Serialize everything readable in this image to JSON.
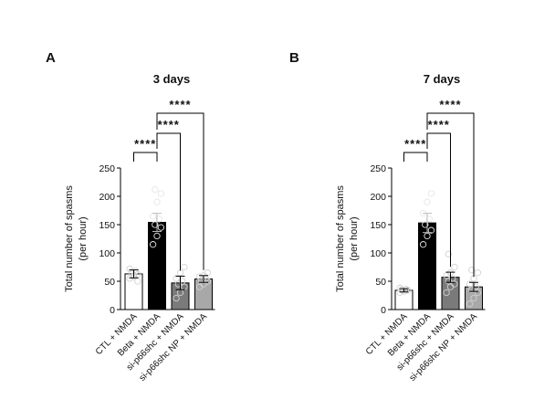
{
  "chart_data": [
    {
      "type": "bar",
      "panel": "A",
      "title": "3 days",
      "ylabel_lines": [
        "Total number of spasms",
        "(per hour)"
      ],
      "ylim": [
        0,
        250
      ],
      "yticks": [
        0,
        50,
        100,
        150,
        200,
        250
      ],
      "ytick_labels": [
        "0",
        "50",
        "100",
        "150",
        "200",
        "250"
      ],
      "categories": [
        "CTL + NMDA",
        "Beta + NMDA",
        "si-p66shc + NMDA",
        "si-p66shc NP + NMDA"
      ],
      "values": [
        63,
        154,
        47,
        54
      ],
      "errors": [
        7,
        16,
        12,
        6
      ],
      "points": [
        [
          55,
          60,
          62,
          65,
          68,
          72,
          58,
          50
        ],
        [
          115,
          130,
          145,
          150,
          160,
          165,
          190,
          205,
          212
        ],
        [
          20,
          30,
          40,
          45,
          50,
          55,
          65,
          75
        ],
        [
          40,
          45,
          50,
          52,
          55,
          58,
          60,
          65
        ]
      ],
      "bar_fills": [
        "#ffffff",
        "#000000",
        "#7a7a7a",
        "#a8a8a8"
      ],
      "comparisons": [
        {
          "from": 0,
          "to": 1,
          "label": "****"
        },
        {
          "from": 1,
          "to": 2,
          "label": "****"
        },
        {
          "from": 1,
          "to": 3,
          "label": "****"
        }
      ],
      "grid": false
    },
    {
      "type": "bar",
      "panel": "B",
      "title": "7 days",
      "ylabel_lines": [
        "Total number of spasms",
        "(per hour)"
      ],
      "ylim": [
        0,
        250
      ],
      "yticks": [
        0,
        50,
        100,
        150,
        200,
        250
      ],
      "ytick_labels": [
        "0",
        "50",
        "100",
        "150",
        "200",
        "250"
      ],
      "categories": [
        "CTL + NMDA",
        "Beta + NMDA",
        "si-p66shc + NMDA",
        "si-p66shc NP + NMDA"
      ],
      "values": [
        34,
        153,
        57,
        40
      ],
      "errors": [
        3,
        17,
        9,
        8
      ],
      "points": [
        [
          30,
          32,
          34,
          35,
          36,
          38
        ],
        [
          115,
          130,
          140,
          150,
          160,
          170,
          190,
          205
        ],
        [
          30,
          40,
          45,
          50,
          55,
          60,
          65,
          75,
          98
        ],
        [
          10,
          20,
          30,
          35,
          40,
          45,
          55,
          65,
          70
        ]
      ],
      "bar_fills": [
        "#ffffff",
        "#000000",
        "#7a7a7a",
        "#a8a8a8"
      ],
      "comparisons": [
        {
          "from": 0,
          "to": 1,
          "label": "****"
        },
        {
          "from": 1,
          "to": 2,
          "label": "****"
        },
        {
          "from": 1,
          "to": 3,
          "label": "****"
        }
      ],
      "grid": false
    }
  ]
}
